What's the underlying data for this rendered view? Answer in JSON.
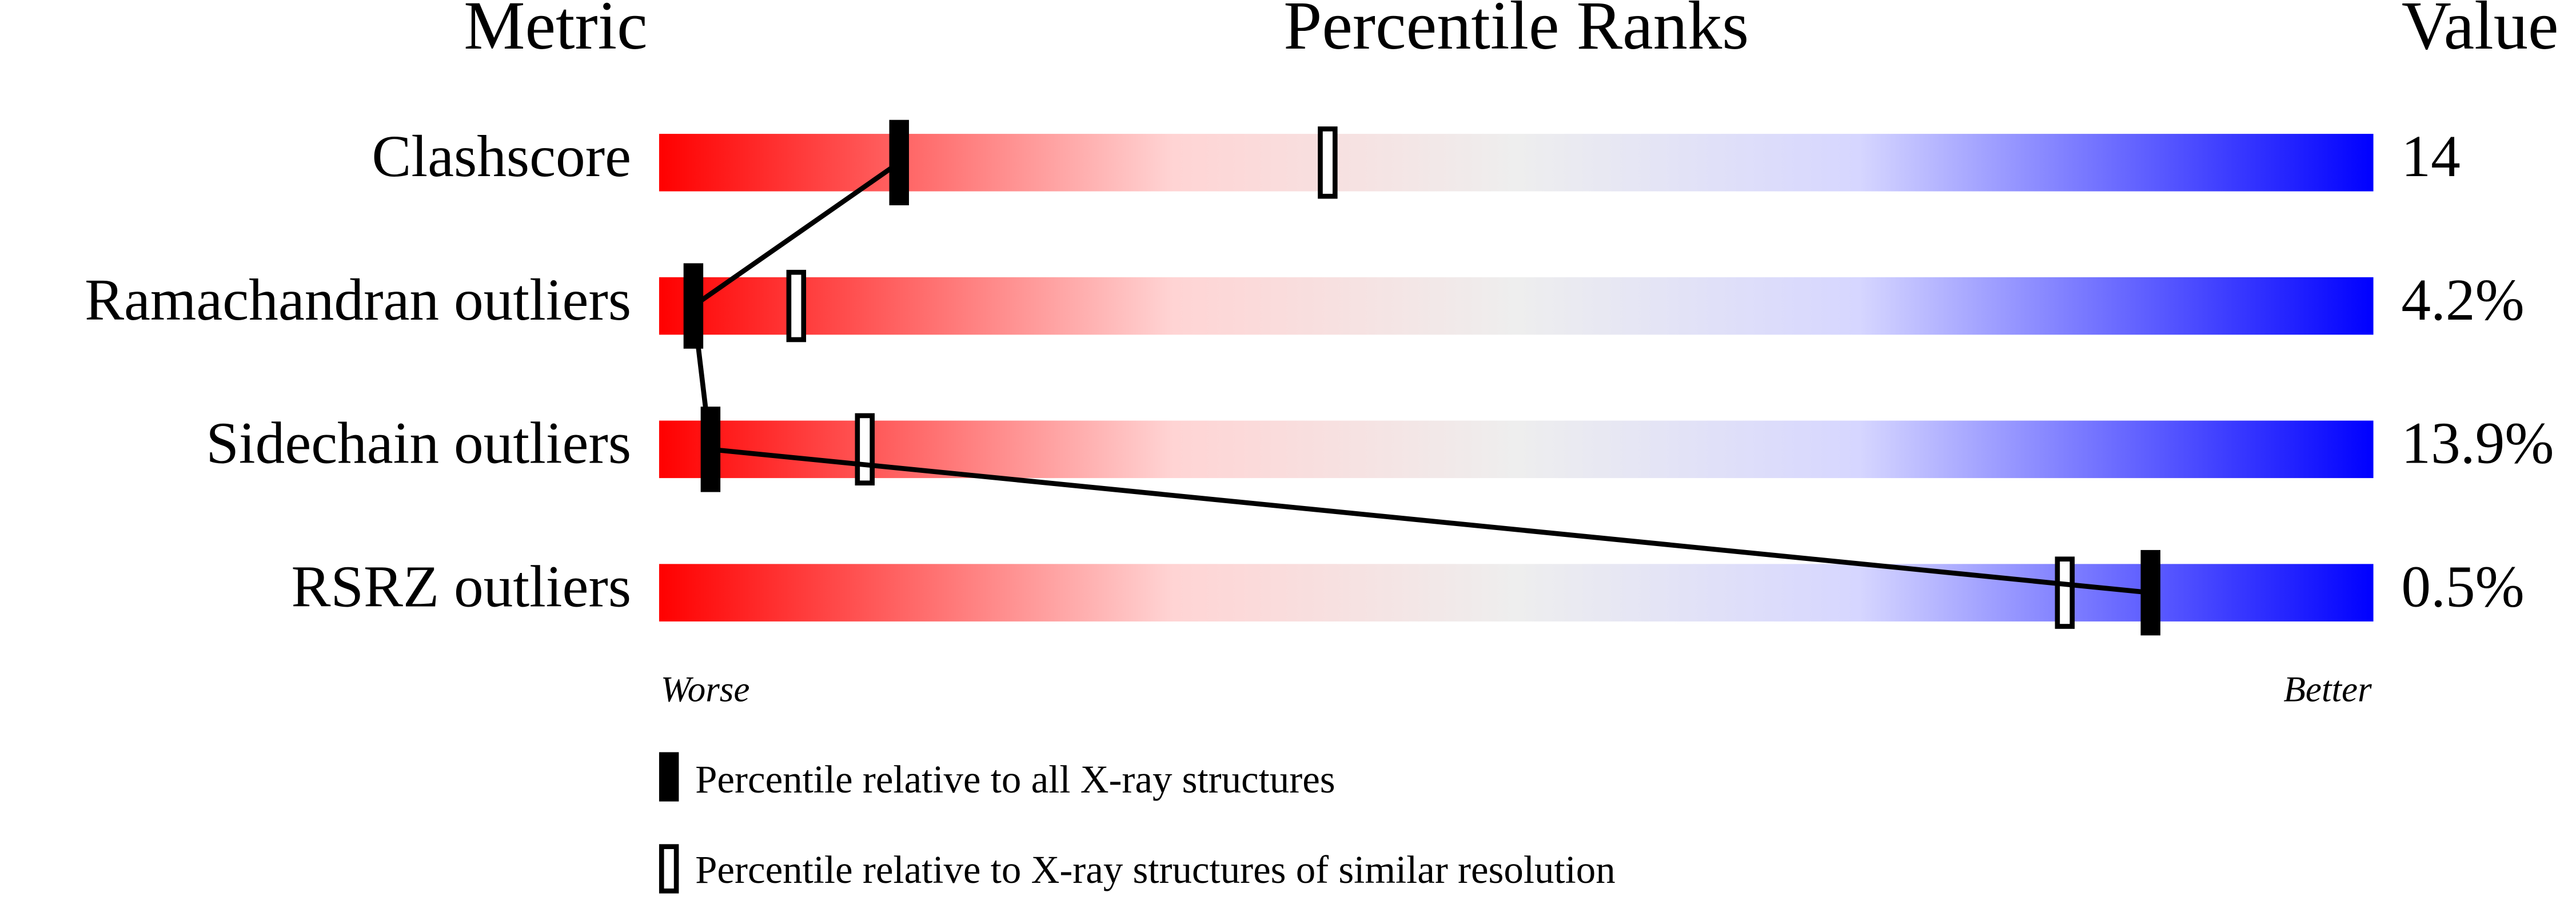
{
  "chart_data": {
    "type": "slider",
    "metric_header": "Metric",
    "title": "Percentile Ranks",
    "value_header": "Value",
    "xlim": [
      0,
      100
    ],
    "worse_label": "Worse",
    "better_label": "Better",
    "categories": [
      "Clashscore",
      "Ramachandran outliers",
      "Sidechain outliers",
      "RSRZ outliers"
    ],
    "metric_values": [
      "14",
      "4.2%",
      "13.9%",
      "0.5%"
    ],
    "series": [
      {
        "name": "Percentile relative to all X-ray structures",
        "color": "#000000",
        "values": [
          14,
          2,
          3,
          87
        ]
      },
      {
        "name": "Percentile relative to X-ray structures of similar resolution",
        "color": "#ffffff",
        "values": [
          39,
          8,
          12,
          82
        ]
      }
    ]
  }
}
